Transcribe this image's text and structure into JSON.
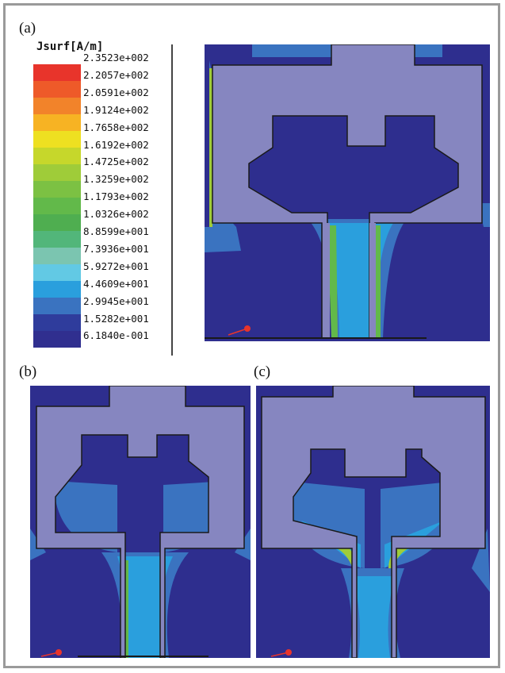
{
  "panels": {
    "a": "(a)",
    "b": "(b)",
    "c": "(c)"
  },
  "legend": {
    "title": "Jsurf[A/m]",
    "values": [
      "2.3523e+002",
      "2.2057e+002",
      "2.0591e+002",
      "1.9124e+002",
      "1.7658e+002",
      "1.6192e+002",
      "1.4725e+002",
      "1.3259e+002",
      "1.1793e+002",
      "1.0326e+002",
      "8.8599e+001",
      "7.3936e+001",
      "5.9272e+001",
      "4.4609e+001",
      "2.9945e+001",
      "1.5282e+001",
      "6.1840e-001"
    ],
    "colors": [
      "#e8342b",
      "#ee5a29",
      "#f2832a",
      "#f7b323",
      "#eee021",
      "#c6d72b",
      "#9fcc39",
      "#7cc143",
      "#62b94a",
      "#4fae50",
      "#52b67a",
      "#7bc5b0",
      "#62c9e4",
      "#2a9fdd",
      "#3a73c0",
      "#2f3c9c",
      "#302f8f"
    ]
  },
  "palette": {
    "background": "#2e2e8e",
    "metal": "#8686c0",
    "outline": "#1a1a1a"
  }
}
